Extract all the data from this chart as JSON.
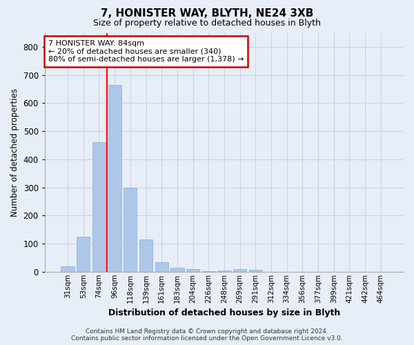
{
  "title1": "7, HONISTER WAY, BLYTH, NE24 3XB",
  "title2": "Size of property relative to detached houses in Blyth",
  "xlabel": "Distribution of detached houses by size in Blyth",
  "ylabel": "Number of detached properties",
  "categories": [
    "31sqm",
    "53sqm",
    "74sqm",
    "96sqm",
    "118sqm",
    "139sqm",
    "161sqm",
    "183sqm",
    "204sqm",
    "226sqm",
    "248sqm",
    "269sqm",
    "291sqm",
    "312sqm",
    "334sqm",
    "356sqm",
    "377sqm",
    "399sqm",
    "421sqm",
    "442sqm",
    "464sqm"
  ],
  "values": [
    18,
    125,
    460,
    665,
    300,
    115,
    35,
    15,
    10,
    3,
    5,
    10,
    8,
    0,
    0,
    0,
    0,
    0,
    0,
    0,
    0
  ],
  "bar_color": "#aec6e8",
  "bar_edge_color": "#8ab0d8",
  "grid_color": "#c8d4e8",
  "bg_color": "#e8eef8",
  "red_line_x": 2.5,
  "annotation_text": "7 HONISTER WAY: 84sqm\n← 20% of detached houses are smaller (340)\n80% of semi-detached houses are larger (1,378) →",
  "annotation_box_color": "#ffffff",
  "annotation_box_edge": "#cc0000",
  "footer": "Contains HM Land Registry data © Crown copyright and database right 2024.\nContains public sector information licensed under the Open Government Licence v3.0.",
  "ylim": [
    0,
    850
  ],
  "yticks": [
    0,
    100,
    200,
    300,
    400,
    500,
    600,
    700,
    800
  ]
}
